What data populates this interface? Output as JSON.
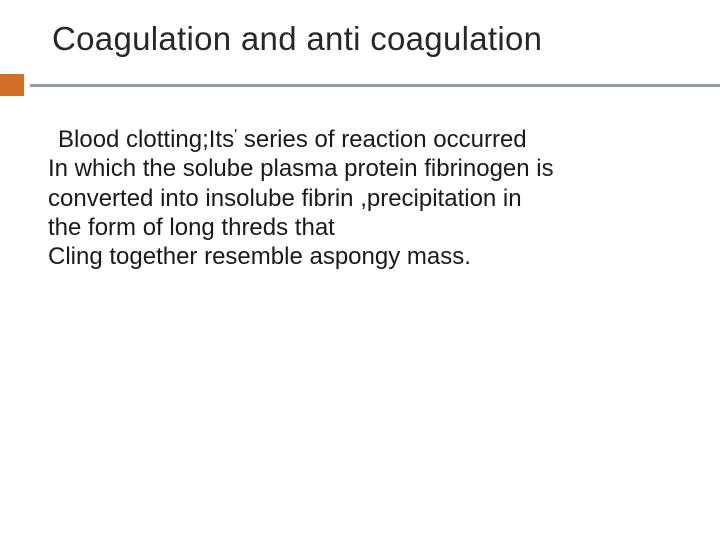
{
  "slide": {
    "title": "Coagulation and anti coagulation",
    "body": {
      "line1_prefix": "Blood clotting;Its",
      "line1_apostrophe": "'",
      "line1_suffix": " series of reaction occurred",
      "line2": "In which the solube plasma protein fibrinogen is",
      "line3": "converted into insolube fibrin  ,precipitation in",
      "line4": " the form of long threds that",
      "line5": "Cling together resemble aspongy  mass."
    }
  },
  "style": {
    "background_color": "#ffffff",
    "title_color": "#272727",
    "title_fontsize": 33,
    "body_color": "#1a1a1a",
    "body_fontsize": 24,
    "accent_color": "#d16f28",
    "divider_color": "#8e9da8",
    "accent_box_width": 24,
    "accent_box_height": 22,
    "divider_height": 3
  }
}
